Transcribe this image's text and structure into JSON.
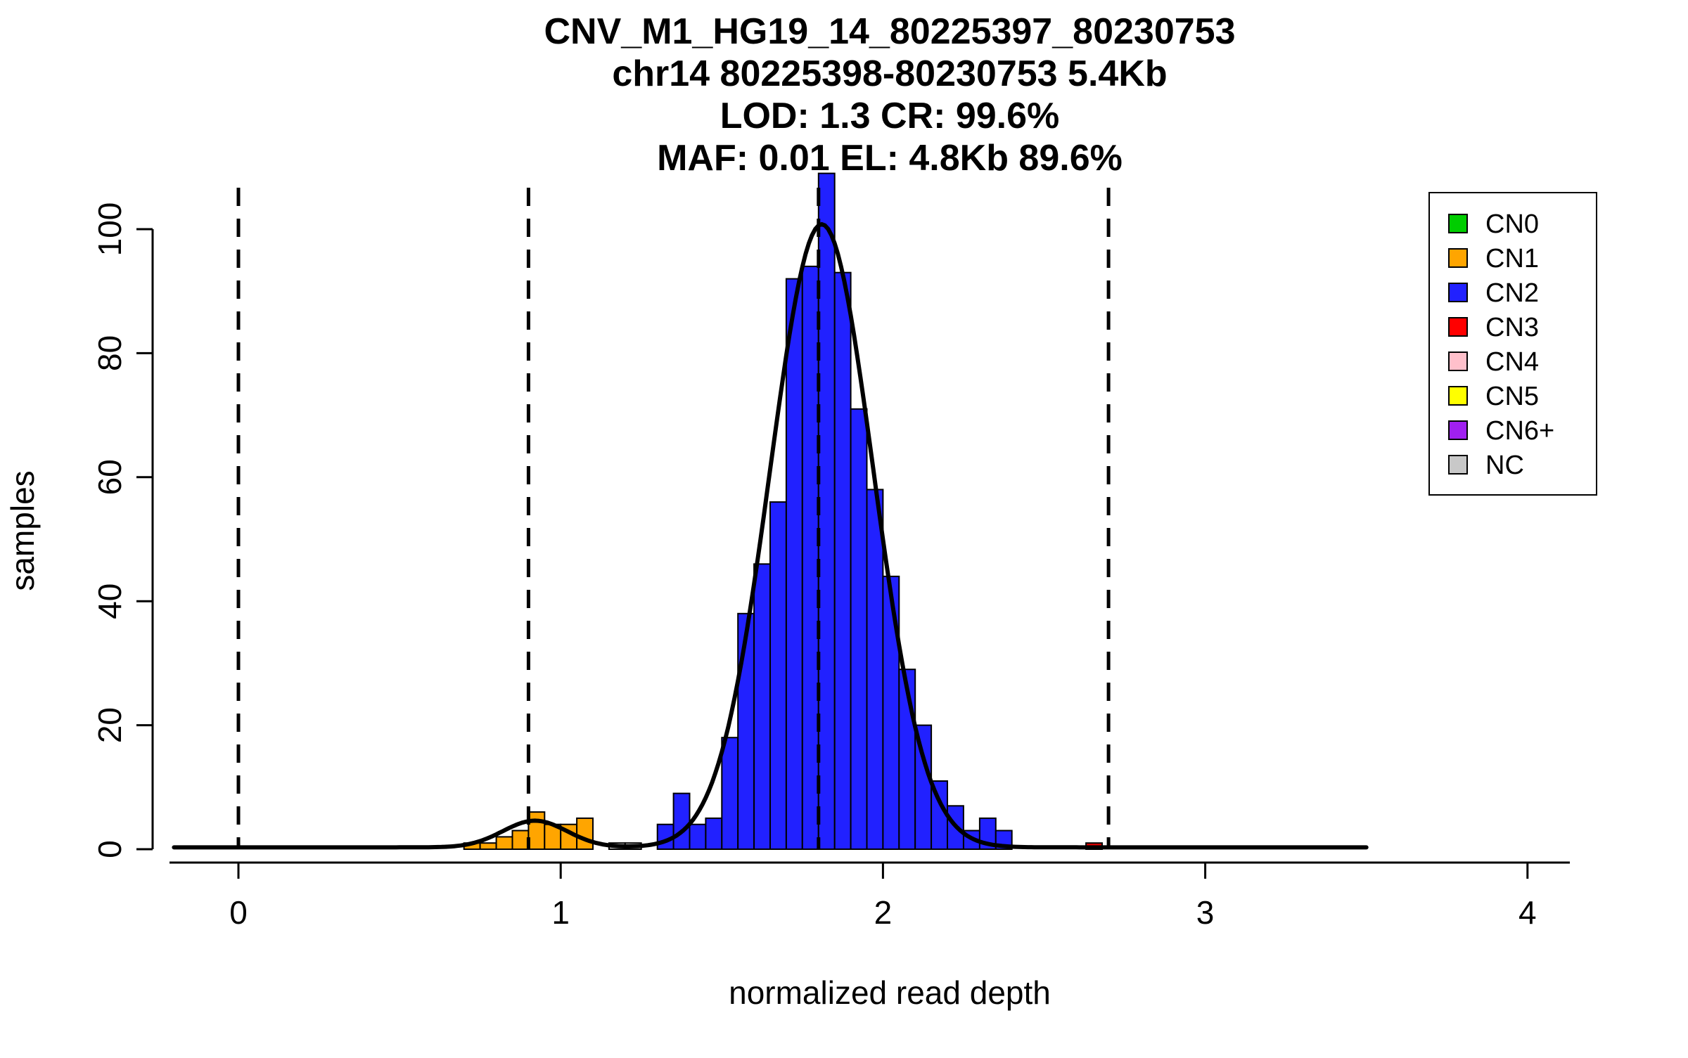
{
  "chart_data": {
    "type": "bar",
    "subtype": "histogram-with-density",
    "title_lines": [
      "CNV_M1_HG19_14_80225397_80230753",
      "chr14 80225398-80230753 5.4Kb",
      "LOD: 1.3 CR: 99.6%",
      "MAF: 0.01 EL: 4.8Kb 89.6%"
    ],
    "xlabel": "normalized read depth",
    "ylabel": "samples",
    "x_ticks": [
      0,
      1,
      2,
      3,
      4
    ],
    "y_ticks": [
      0,
      20,
      40,
      60,
      80,
      100
    ],
    "xlim": [
      -0.2,
      4.2
    ],
    "ylim": [
      0,
      110
    ],
    "grid": false,
    "legend_position": "top-right",
    "bin_width": 0.05,
    "dashed_lines_x": [
      0,
      0.9,
      1.8,
      2.7
    ],
    "bars": [
      {
        "x": 0.7,
        "h": 1,
        "cn": "CN1"
      },
      {
        "x": 0.75,
        "h": 1,
        "cn": "CN1"
      },
      {
        "x": 0.8,
        "h": 2,
        "cn": "CN1"
      },
      {
        "x": 0.85,
        "h": 3,
        "cn": "CN1"
      },
      {
        "x": 0.9,
        "h": 6,
        "cn": "CN1"
      },
      {
        "x": 0.95,
        "h": 4,
        "cn": "CN1"
      },
      {
        "x": 1.0,
        "h": 4,
        "cn": "CN1"
      },
      {
        "x": 1.05,
        "h": 5,
        "cn": "CN1"
      },
      {
        "x": 1.15,
        "h": 1,
        "cn": "NC"
      },
      {
        "x": 1.2,
        "h": 1,
        "cn": "NC"
      },
      {
        "x": 1.3,
        "h": 4,
        "cn": "CN2"
      },
      {
        "x": 1.35,
        "h": 9,
        "cn": "CN2"
      },
      {
        "x": 1.4,
        "h": 4,
        "cn": "CN2"
      },
      {
        "x": 1.45,
        "h": 5,
        "cn": "CN2"
      },
      {
        "x": 1.5,
        "h": 18,
        "cn": "CN2"
      },
      {
        "x": 1.55,
        "h": 38,
        "cn": "CN2"
      },
      {
        "x": 1.6,
        "h": 46,
        "cn": "CN2"
      },
      {
        "x": 1.65,
        "h": 56,
        "cn": "CN2"
      },
      {
        "x": 1.7,
        "h": 92,
        "cn": "CN2"
      },
      {
        "x": 1.75,
        "h": 94,
        "cn": "CN2"
      },
      {
        "x": 1.8,
        "h": 109,
        "cn": "CN2"
      },
      {
        "x": 1.85,
        "h": 93,
        "cn": "CN2"
      },
      {
        "x": 1.9,
        "h": 71,
        "cn": "CN2"
      },
      {
        "x": 1.95,
        "h": 58,
        "cn": "CN2"
      },
      {
        "x": 2.0,
        "h": 44,
        "cn": "CN2"
      },
      {
        "x": 2.05,
        "h": 29,
        "cn": "CN2"
      },
      {
        "x": 2.1,
        "h": 20,
        "cn": "CN2"
      },
      {
        "x": 2.15,
        "h": 11,
        "cn": "CN2"
      },
      {
        "x": 2.2,
        "h": 7,
        "cn": "CN2"
      },
      {
        "x": 2.25,
        "h": 3,
        "cn": "CN2"
      },
      {
        "x": 2.3,
        "h": 5,
        "cn": "CN2"
      },
      {
        "x": 2.35,
        "h": 3,
        "cn": "CN2"
      },
      {
        "x": 2.63,
        "h": 1,
        "cn": "CN3"
      }
    ],
    "curve": {
      "baseline": 0.3,
      "range": [
        -0.2,
        3.5
      ],
      "components": [
        {
          "mu": 1.81,
          "amp": 100.5,
          "sd": 0.16
        },
        {
          "mu": 0.92,
          "amp": 4.3,
          "sd": 0.1
        }
      ]
    },
    "legend": [
      {
        "label": "CN0",
        "color": "#00CD00"
      },
      {
        "label": "CN1",
        "color": "#FFA500"
      },
      {
        "label": "CN2",
        "color": "#2121FF"
      },
      {
        "label": "CN3",
        "color": "#FF0000"
      },
      {
        "label": "CN4",
        "color": "#FFC0CB"
      },
      {
        "label": "CN5",
        "color": "#FFFF00"
      },
      {
        "label": "CN6+",
        "color": "#A020F0"
      },
      {
        "label": "NC",
        "color": "#C8C8C8"
      }
    ],
    "bar_colors": {
      "CN0": "#00CD00",
      "CN1": "#FFA500",
      "CN2": "#2121FF",
      "CN3": "#E60000",
      "CN4": "#FFC0CB",
      "CN5": "#FFFF00",
      "CN6+": "#A020F0",
      "NC": "#ECECEC"
    },
    "line_color": "#000000"
  }
}
